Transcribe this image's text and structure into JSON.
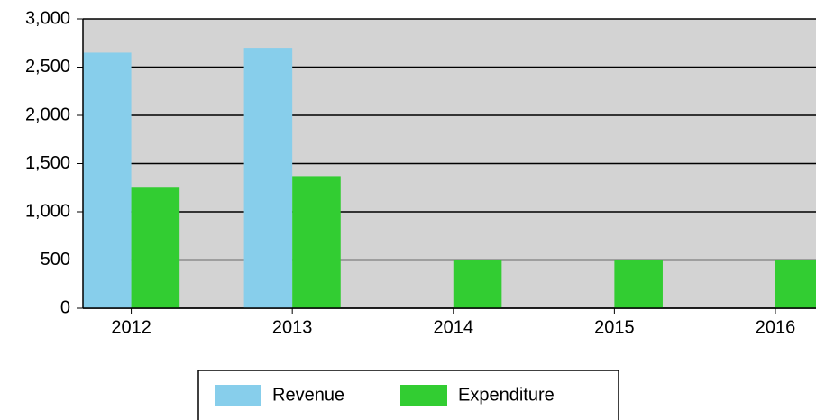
{
  "chart_data": {
    "type": "bar",
    "categories": [
      "2012",
      "2013",
      "2014",
      "2015",
      "2016"
    ],
    "series": [
      {
        "name": "Revenue",
        "color": "#87ceeb",
        "values": [
          2650,
          2700,
          null,
          null,
          null
        ]
      },
      {
        "name": "Expenditure",
        "color": "#32cd32",
        "values": [
          1250,
          1370,
          500,
          500,
          500
        ]
      }
    ],
    "ylim": [
      0,
      3000
    ],
    "yticks": [
      0,
      500,
      {
        "value": 1000,
        "label": "1,000"
      },
      {
        "value": 1500,
        "label": "1,500"
      },
      {
        "value": 2000,
        "label": "2,000"
      },
      {
        "value": 2500,
        "label": "2,500"
      },
      {
        "value": 3000,
        "label": "3,000"
      }
    ],
    "grid": true,
    "legend": "bottom",
    "background": "#d3d3d3"
  }
}
